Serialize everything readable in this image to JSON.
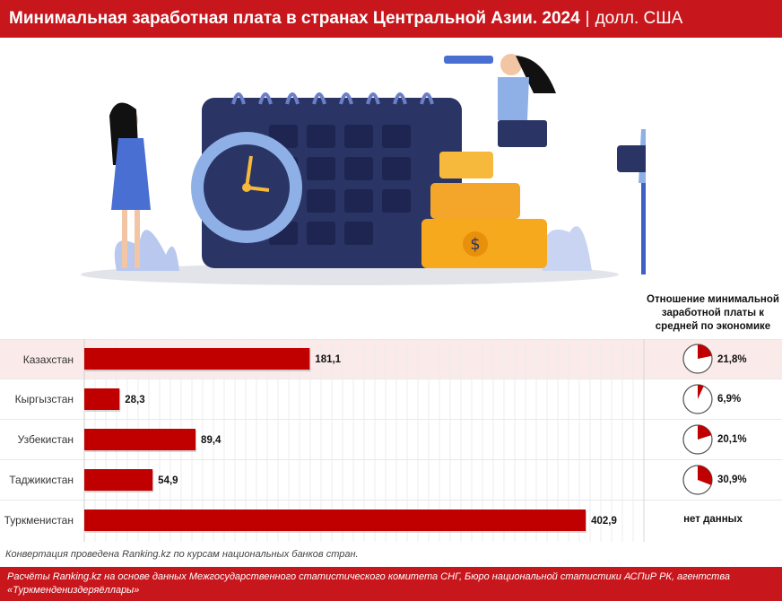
{
  "header": {
    "title": "Минимальная заработная плата в странах Центральной Азии. 2024",
    "separator": "|",
    "unit": "долл. США"
  },
  "ratio_header": {
    "line1": "Отношение минимальной",
    "line2": "заработной платы к",
    "line3": "средней по экономике"
  },
  "chart_data": {
    "type": "bar",
    "orientation": "horizontal",
    "title": "Минимальная заработная плата в странах Центральной Азии. 2024",
    "unit": "долл. США",
    "categories": [
      "Казахстан",
      "Кыргызстан",
      "Узбекистан",
      "Таджикистан",
      "Туркменистан"
    ],
    "values": [
      181.1,
      28.3,
      89.4,
      54.9,
      402.9
    ],
    "value_labels": [
      "181,1",
      "28,3",
      "89,4",
      "54,9",
      "402,9"
    ],
    "xlim": [
      0,
      405
    ],
    "grid": true,
    "highlighted_category": "Казахстан",
    "ratio_to_average": {
      "title": "Отношение минимальной заработной платы к средней по экономике",
      "values": [
        21.8,
        6.9,
        20.1,
        30.9,
        null
      ],
      "labels": [
        "21,8%",
        "6,9%",
        "20,1%",
        "30,9%",
        "нет данных"
      ]
    }
  },
  "colors": {
    "accent": "#c8161d",
    "bar": "#c00000",
    "highlight_row": "#fbeaea"
  },
  "note": "Конвертация проведена Ranking.kz по курсам национальных банков стран.",
  "footer": {
    "line1": "Расчёты Ranking.kz на основе данных Межгосударственного статистического комитета СНГ, Бюро национальной статистики АСПиР РК, агентства",
    "line2": "«Туркмендениздеряёллары»"
  }
}
